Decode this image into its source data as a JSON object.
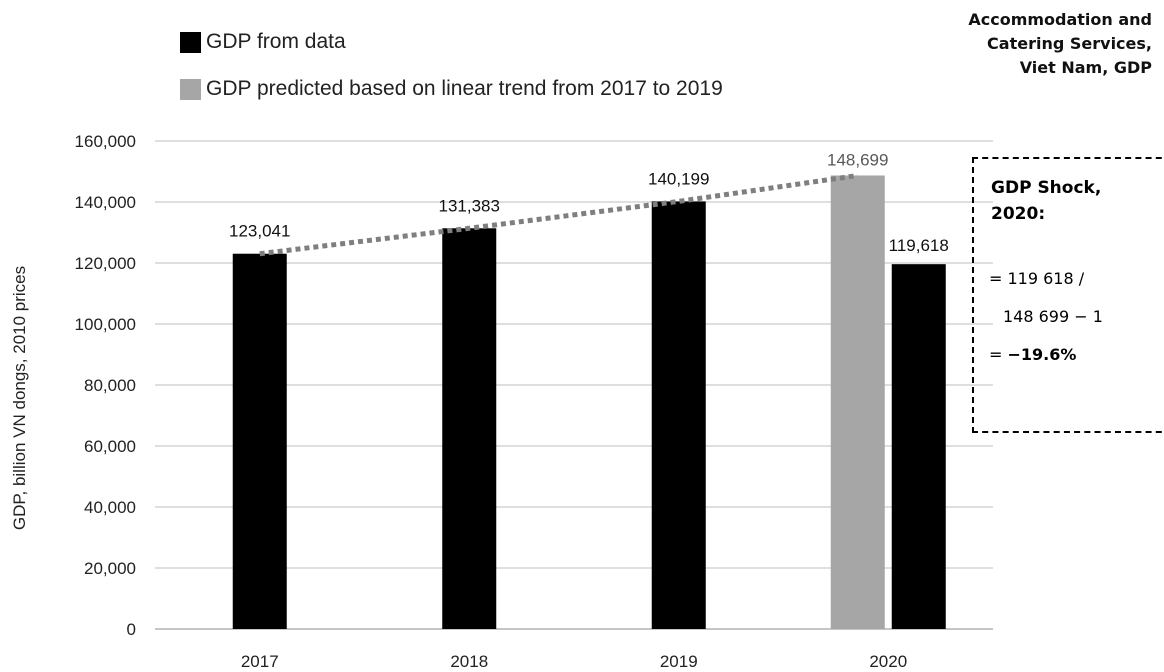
{
  "chart_data": {
    "type": "bar",
    "title": "Accommodation and Catering Services, Viet Nam, GDP",
    "title_lines": [
      "Accommodation and",
      "Catering Services,",
      "Viet Nam, GDP"
    ],
    "xlabel": "",
    "ylabel": "GDP,  billion VN dongs, 2010 prices",
    "ylim": [
      0,
      160000
    ],
    "yticks": [
      0,
      20000,
      40000,
      60000,
      80000,
      100000,
      120000,
      140000,
      160000
    ],
    "ytick_labels": [
      "0",
      "20,000",
      "40,000",
      "60,000",
      "80,000",
      "100,000",
      "120,000",
      "140,000",
      "160,000"
    ],
    "categories": [
      "2017",
      "2018",
      "2019",
      "2020"
    ],
    "grid": true,
    "legend_position": "top-left",
    "series": [
      {
        "name": "GDP from data",
        "color": "#000000",
        "values": [
          123041,
          131383,
          140199,
          119618
        ],
        "labels": [
          "123,041",
          "131,383",
          "140,199",
          "119,618"
        ]
      },
      {
        "name": "GDP predicted based on linear trend from 2017 to 2019",
        "color": "#a6a6a6",
        "values": [
          null,
          null,
          null,
          148699
        ],
        "labels": [
          "",
          "",
          "",
          "148,699"
        ]
      }
    ],
    "trend_line": {
      "style": "dotted",
      "color": "#7f7f7f",
      "values": [
        123041,
        131383,
        140199,
        148699
      ]
    },
    "annotation": {
      "title_lines": [
        "GDP Shock,",
        "2020:"
      ],
      "line1": "= 119 618 /",
      "line2": "148 699 − 1",
      "line3_prefix": "= ",
      "line3_value": "−19.6%"
    }
  }
}
